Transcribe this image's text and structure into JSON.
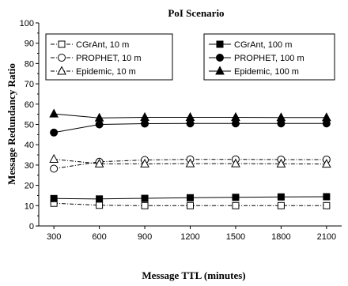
{
  "chart_data": {
    "type": "line",
    "title": "PoI Scenario",
    "xlabel": "Message TTL (minutes)",
    "ylabel": "Message Redundancy Ratio",
    "x": [
      300,
      600,
      900,
      1200,
      1500,
      1800,
      2100
    ],
    "xticks": [
      "300",
      "600",
      "900",
      "1200",
      "1500",
      "1800",
      "2100"
    ],
    "ylim": [
      0,
      100
    ],
    "yticks": [
      "0",
      "10",
      "20",
      "30",
      "40",
      "50",
      "60",
      "70",
      "80",
      "90",
      "100"
    ],
    "grid": false,
    "legends": [
      {
        "position": "top-left",
        "entries": [
          0,
          1,
          2
        ]
      },
      {
        "position": "top-right",
        "entries": [
          3,
          4,
          5
        ]
      }
    ],
    "series": [
      {
        "name": "CGrAnt, 10 m",
        "marker": "square",
        "filled": false,
        "dashed": true,
        "values": [
          11.2,
          10.2,
          10.0,
          10.0,
          10.0,
          10.0,
          10.0
        ]
      },
      {
        "name": "PROPHET, 10 m",
        "marker": "circle",
        "filled": false,
        "dashed": true,
        "values": [
          28.2,
          31.6,
          32.5,
          32.8,
          32.8,
          32.7,
          32.7
        ]
      },
      {
        "name": "Epidemic, 10 m",
        "marker": "triangle",
        "filled": false,
        "dashed": true,
        "values": [
          32.9,
          30.6,
          30.6,
          30.7,
          30.7,
          30.6,
          30.5
        ]
      },
      {
        "name": "CGrAnt, 100 m",
        "marker": "square",
        "filled": true,
        "dashed": false,
        "values": [
          13.5,
          13.3,
          13.6,
          13.9,
          14.1,
          14.3,
          14.4
        ]
      },
      {
        "name": "PROPHET, 100 m",
        "marker": "circle",
        "filled": true,
        "dashed": false,
        "values": [
          46.0,
          50.0,
          50.4,
          50.5,
          50.5,
          50.5,
          50.5
        ]
      },
      {
        "name": "Epidemic, 100 m",
        "marker": "triangle",
        "filled": true,
        "dashed": false,
        "values": [
          55.2,
          53.2,
          53.5,
          53.5,
          53.5,
          53.4,
          53.4
        ]
      }
    ]
  }
}
